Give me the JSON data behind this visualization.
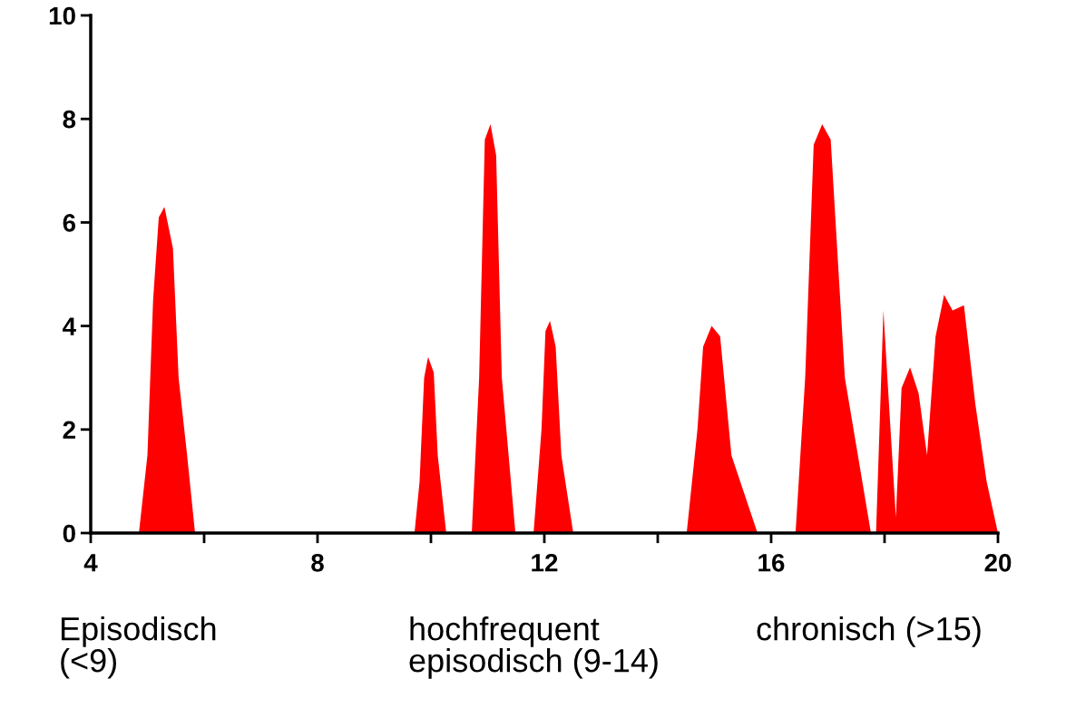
{
  "chart_data": {
    "type": "area",
    "x": [
      4.85,
      5.0,
      5.1,
      5.2,
      5.3,
      5.45,
      5.55,
      5.7,
      5.84,
      7.0,
      9.71,
      9.8,
      9.88,
      9.95,
      10.05,
      10.12,
      10.27,
      10.5,
      10.72,
      10.85,
      10.95,
      11.05,
      11.15,
      11.25,
      11.49,
      11.6,
      11.81,
      11.95,
      12.02,
      12.1,
      12.2,
      12.3,
      12.51,
      13.5,
      14.51,
      14.7,
      14.8,
      14.95,
      15.1,
      15.3,
      15.76,
      16.1,
      16.43,
      16.6,
      16.75,
      16.9,
      17.05,
      17.3,
      17.76,
      17.8,
      17.85,
      17.98,
      18.05,
      18.2,
      18.3,
      18.45,
      18.6,
      18.75,
      18.9,
      19.05,
      19.2,
      19.4,
      19.6,
      19.8,
      20.0
    ],
    "series": [
      {
        "color": "#ff0000",
        "values": [
          0,
          1.5,
          4.5,
          6.1,
          6.3,
          5.5,
          3,
          1.5,
          0,
          null,
          0,
          1,
          3.0,
          3.4,
          3.1,
          1.5,
          0,
          null,
          0,
          3,
          7.6,
          7.9,
          7.3,
          3,
          0,
          null,
          0,
          2,
          3.9,
          4.1,
          3.6,
          1.5,
          0,
          null,
          0,
          2,
          3.6,
          4.0,
          3.8,
          1.5,
          0,
          null,
          0,
          3,
          7.5,
          7.9,
          7.6,
          3,
          0,
          null,
          0,
          4.3,
          3,
          0.3,
          2.8,
          3.2,
          2.7,
          1.5,
          3.8,
          4.6,
          4.3,
          4.4,
          2.5,
          1,
          0
        ]
      }
    ],
    "xlim": [
      4,
      20
    ],
    "xticks": [
      4,
      {
        "value": 6,
        "label": null
      },
      8,
      {
        "value": 10,
        "label": null
      },
      12,
      {
        "value": 14,
        "label": null
      },
      16,
      {
        "value": 18,
        "label": null
      },
      20
    ],
    "ylim": [
      0,
      10
    ],
    "yticks": [
      0,
      2,
      4,
      6,
      8,
      10
    ],
    "annotations": [
      "Episodisch\n(<9)",
      "hochfrequent\nepisodisch (9-14)",
      "chronisch (>15)"
    ],
    "line_style": "solid",
    "grid": false,
    "legend": false
  }
}
